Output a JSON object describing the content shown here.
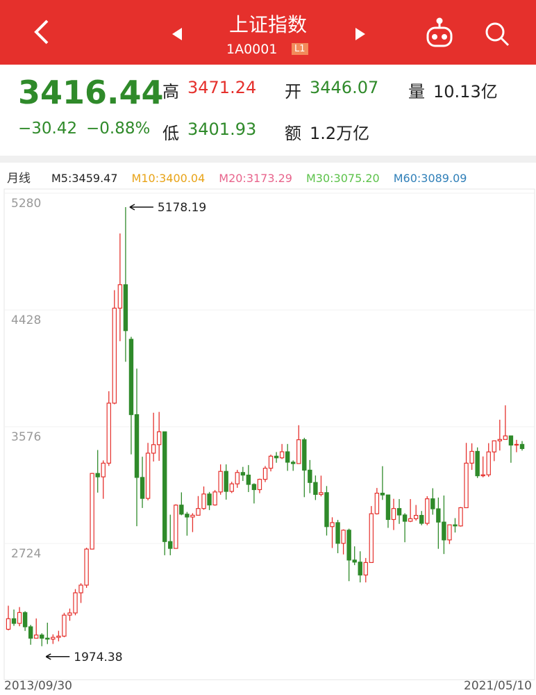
{
  "header": {
    "title": "上证指数",
    "code": "1A0001",
    "level": "L1"
  },
  "quote": {
    "price": "3416.44",
    "change": "−30.42",
    "change_pct": "−0.88%",
    "high_label": "高",
    "high": "3471.24",
    "open_label": "开",
    "open": "3446.07",
    "volume_label": "量",
    "volume": "10.13亿",
    "low_label": "低",
    "low": "3401.93",
    "amount_label": "额",
    "amount": "1.2万亿"
  },
  "chart_data": {
    "type": "candlestick",
    "period_label": "月线",
    "ma_legend": [
      {
        "label": "M5:3459.47",
        "color": "#222222"
      },
      {
        "label": "M10:3400.04",
        "color": "#e8a317"
      },
      {
        "label": "M20:3173.29",
        "color": "#e8648c"
      },
      {
        "label": "M30:3075.20",
        "color": "#5cc24a"
      },
      {
        "label": "M60:3089.09",
        "color": "#2f7fb8"
      }
    ],
    "up_color": "#e5302c",
    "down_color": "#2f8a2a",
    "ylim": [
      1735,
      5300
    ],
    "yticks": [
      2724,
      3576,
      4428,
      5280
    ],
    "x": [
      "2013/09/30",
      null,
      null,
      null,
      null,
      null,
      null,
      null,
      null,
      null,
      null,
      null,
      null,
      null,
      null,
      null,
      null,
      null,
      null,
      null,
      null,
      null,
      null,
      null,
      null,
      null,
      null,
      null,
      null,
      null,
      null,
      null,
      null,
      null,
      null,
      null,
      null,
      null,
      null,
      null,
      null,
      null,
      null,
      null,
      null,
      null,
      null,
      null,
      null,
      null,
      null,
      null,
      null,
      null,
      null,
      null,
      null,
      null,
      null,
      null,
      null,
      null,
      null,
      null,
      null,
      null,
      null,
      null,
      null,
      null,
      null,
      null,
      null,
      null,
      null,
      null,
      null,
      null,
      null,
      null,
      null,
      null,
      null,
      null,
      null,
      null,
      null,
      null,
      null,
      null,
      null,
      null,
      "2021/05/10"
    ],
    "ohlc": [
      [
        2098,
        2270,
        2090,
        2175
      ],
      [
        2175,
        2242,
        2123,
        2141
      ],
      [
        2141,
        2260,
        2120,
        2220
      ],
      [
        2220,
        2230,
        2086,
        2116
      ],
      [
        2116,
        2130,
        1985,
        2033
      ],
      [
        2033,
        2177,
        2031,
        2056
      ],
      [
        2056,
        2069,
        1974.38,
        2033
      ],
      [
        2033,
        2146,
        1990,
        2026
      ],
      [
        2026,
        2061,
        1991,
        2039
      ],
      [
        2039,
        2087,
        2010,
        2048
      ],
      [
        2048,
        2218,
        2040,
        2201
      ],
      [
        2201,
        2249,
        2160,
        2217
      ],
      [
        2217,
        2391,
        2200,
        2364
      ],
      [
        2364,
        2434,
        2290,
        2420
      ],
      [
        2420,
        2693,
        2400,
        2683
      ],
      [
        2683,
        3239,
        2680,
        3235
      ],
      [
        3235,
        3406,
        3095,
        3210
      ],
      [
        3210,
        3330,
        3050,
        3310
      ],
      [
        3310,
        3835,
        3290,
        3748
      ],
      [
        3748,
        4572,
        3740,
        4441
      ],
      [
        4441,
        4986,
        4200,
        4612
      ],
      [
        4612,
        5178.19,
        4050,
        4277
      ],
      [
        4214,
        4232,
        3374,
        3664
      ],
      [
        3664,
        4000,
        2850,
        3206
      ],
      [
        3206,
        3357,
        2983,
        3053
      ],
      [
        3053,
        3458,
        3039,
        3383
      ],
      [
        3383,
        3678,
        3322,
        3445
      ],
      [
        3445,
        3684,
        3327,
        3539
      ],
      [
        3539,
        3539,
        2638,
        2738
      ],
      [
        2738,
        2934,
        2638,
        2688
      ],
      [
        2688,
        3010,
        2688,
        3004
      ],
      [
        3004,
        3097,
        2930,
        2938
      ],
      [
        2938,
        2954,
        2781,
        2917
      ],
      [
        2917,
        2945,
        2807,
        2930
      ],
      [
        2930,
        3070,
        2929,
        2979
      ],
      [
        2979,
        3140,
        2970,
        3085
      ],
      [
        3085,
        3100,
        2968,
        3005
      ],
      [
        3005,
        3114,
        3000,
        3100
      ],
      [
        3100,
        3301,
        3080,
        3250
      ],
      [
        3250,
        3301,
        3044,
        3104
      ],
      [
        3104,
        3174,
        3092,
        3159
      ],
      [
        3159,
        3261,
        3130,
        3242
      ],
      [
        3242,
        3283,
        3180,
        3223
      ],
      [
        3223,
        3296,
        3099,
        3155
      ],
      [
        3155,
        3163,
        3016,
        3117
      ],
      [
        3117,
        3197,
        3091,
        3192
      ],
      [
        3192,
        3289,
        3172,
        3273
      ],
      [
        3273,
        3372,
        3250,
        3361
      ],
      [
        3361,
        3391,
        3313,
        3349
      ],
      [
        3349,
        3450,
        3340,
        3393
      ],
      [
        3393,
        3450,
        3254,
        3317
      ],
      [
        3317,
        3330,
        3254,
        3307
      ],
      [
        3307,
        3587,
        3307,
        3481
      ],
      [
        3481,
        3495,
        3062,
        3259
      ],
      [
        3259,
        3333,
        3091,
        3169
      ],
      [
        3169,
        3220,
        3041,
        3082
      ],
      [
        3082,
        3219,
        3068,
        3095
      ],
      [
        3095,
        3143,
        2782,
        2847
      ],
      [
        2847,
        2915,
        2691,
        2876
      ],
      [
        2876,
        2896,
        2653,
        2725
      ],
      [
        2725,
        2827,
        2644,
        2821
      ],
      [
        2821,
        2832,
        2449,
        2603
      ],
      [
        2603,
        2703,
        2566,
        2588
      ],
      [
        2588,
        2667,
        2440,
        2494
      ],
      [
        2494,
        2618,
        2440,
        2585
      ],
      [
        2585,
        2997,
        2585,
        2941
      ],
      [
        2941,
        3129,
        2935,
        3091
      ],
      [
        3091,
        3288,
        3042,
        3078
      ],
      [
        3078,
        3079,
        2838,
        2899
      ],
      [
        2899,
        3050,
        2822,
        2979
      ],
      [
        2979,
        3048,
        2867,
        2932
      ],
      [
        2932,
        2945,
        2733,
        2886
      ],
      [
        2886,
        3048,
        2880,
        2905
      ],
      [
        2905,
        3005,
        2891,
        2929
      ],
      [
        2929,
        2961,
        2857,
        2871
      ],
      [
        2871,
        3069,
        2857,
        3050
      ],
      [
        3050,
        3127,
        2934,
        2977
      ],
      [
        2977,
        3059,
        2685,
        2880
      ],
      [
        2880,
        3074,
        2647,
        2750
      ],
      [
        2750,
        2860,
        2720,
        2860
      ],
      [
        2860,
        2909,
        2804,
        2852
      ],
      [
        2852,
        2990,
        2847,
        2985
      ],
      [
        2985,
        3458,
        2985,
        3310
      ],
      [
        3310,
        3455,
        3261,
        3396
      ],
      [
        3396,
        3425,
        3202,
        3218
      ],
      [
        3218,
        3359,
        3207,
        3225
      ],
      [
        3225,
        3456,
        3210,
        3392
      ],
      [
        3392,
        3475,
        3325,
        3473
      ],
      [
        3473,
        3627,
        3402,
        3483
      ],
      [
        3483,
        3732,
        3482,
        3509
      ],
      [
        3509,
        3511,
        3313,
        3442
      ],
      [
        3442,
        3480,
        3390,
        3447
      ],
      [
        3447,
        3471.24,
        3401.93,
        3416.44
      ]
    ]
  }
}
